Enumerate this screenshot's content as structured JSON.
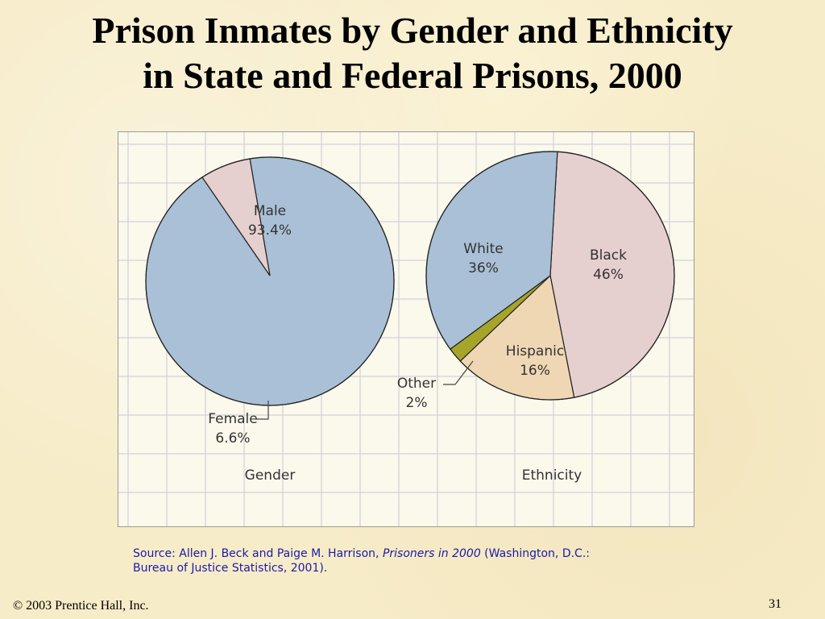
{
  "slide": {
    "title_line1": "Prison Inmates by Gender and Ethnicity",
    "title_line2": "in State and Federal Prisons, 2000",
    "source_prefix": "Source: Allen J. Beck and Paige M. Harrison, ",
    "source_title": "Prisoners in 2000",
    "source_suffix": " (Washington, D.C.:",
    "source_line2": "Bureau of Justice Statistics, 2001).",
    "copyright": "© 2003 Prentice Hall, Inc.",
    "page_number": "31"
  },
  "chart_data": [
    {
      "type": "pie",
      "title": "Gender",
      "slices": [
        {
          "label": "Male",
          "value": 93.4,
          "value_label": "93.4%",
          "color": "#a9c0d6"
        },
        {
          "label": "Female",
          "value": 6.6,
          "value_label": "6.6%",
          "color": "#e6cfcf"
        }
      ]
    },
    {
      "type": "pie",
      "title": "Ethnicity",
      "slices": [
        {
          "label": "Black",
          "value": 46,
          "value_label": "46%",
          "color": "#e6cfcf"
        },
        {
          "label": "Hispanic",
          "value": 16,
          "value_label": "16%",
          "color": "#efd7b4"
        },
        {
          "label": "Other",
          "value": 2,
          "value_label": "2%",
          "color": "#a7a42a"
        },
        {
          "label": "White",
          "value": 36,
          "value_label": "36%",
          "color": "#a9c0d6"
        }
      ]
    }
  ]
}
